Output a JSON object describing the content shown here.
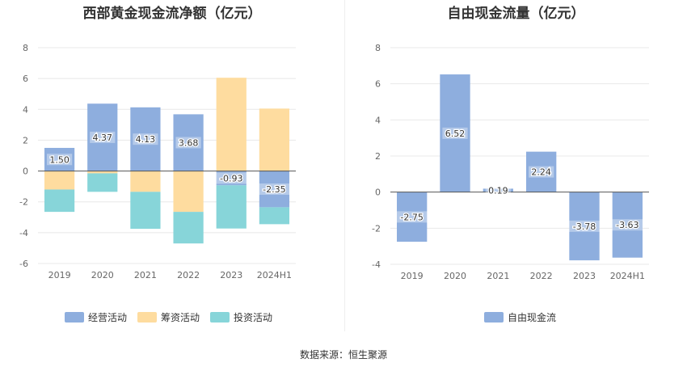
{
  "source_text": "数据来源：恒生聚源",
  "chart_data": [
    {
      "type": "bar",
      "stacked": true,
      "title": "西部黄金现金流净额（亿元）",
      "categories": [
        "2019",
        "2020",
        "2021",
        "2022",
        "2023",
        "2024H1"
      ],
      "ylim": [
        -6,
        8
      ],
      "yticks": [
        -6,
        -4,
        -2,
        0,
        2,
        4,
        6,
        8
      ],
      "grid": true,
      "legend_position": "bottom",
      "series": [
        {
          "name": "经营活动",
          "color": "#8eaede",
          "values": [
            1.5,
            4.37,
            4.13,
            3.68,
            -0.93,
            -2.35
          ]
        },
        {
          "name": "筹资活动",
          "color": "#fedc9f",
          "values": [
            -1.2,
            -0.15,
            -1.35,
            -2.65,
            6.05,
            4.05
          ]
        },
        {
          "name": "投资活动",
          "color": "#87d5d9",
          "values": [
            -1.45,
            -1.2,
            -2.4,
            -2.05,
            -2.8,
            -1.1
          ]
        }
      ],
      "labels_series": "经营活动",
      "data_labels": [
        "1.50",
        "4.37",
        "4.13",
        "3.68",
        "-0.93",
        "-2.35"
      ]
    },
    {
      "type": "bar",
      "title": "自由现金流量（亿元）",
      "categories": [
        "2019",
        "2020",
        "2021",
        "2022",
        "2023",
        "2024H1"
      ],
      "ylim": [
        -4,
        8
      ],
      "yticks": [
        -4,
        -2,
        0,
        2,
        4,
        6,
        8
      ],
      "grid": true,
      "legend_position": "bottom",
      "series": [
        {
          "name": "自由现金流",
          "color": "#8eaede",
          "values": [
            -2.75,
            6.52,
            0.19,
            2.24,
            -3.78,
            -3.63
          ]
        }
      ],
      "data_labels": [
        "-2.75",
        "6.52",
        "0.19",
        "2.24",
        "-3.78",
        "-3.63"
      ]
    }
  ]
}
